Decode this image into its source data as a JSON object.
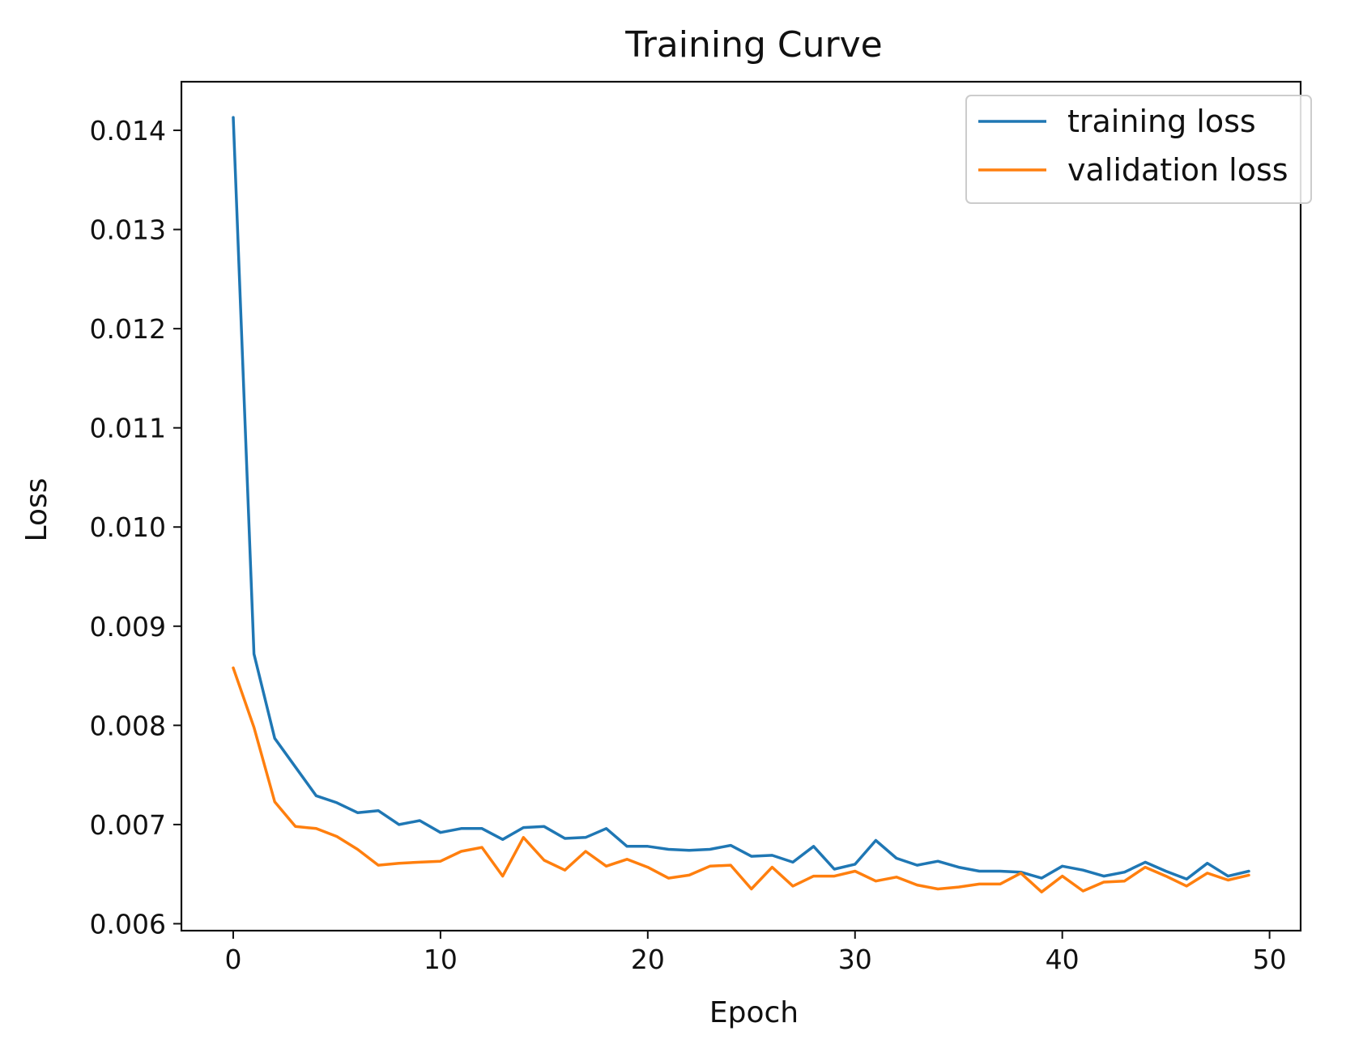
{
  "chart_data": {
    "type": "line",
    "title": "Training Curve",
    "xlabel": "Epoch",
    "ylabel": "Loss",
    "xlim": [
      -2.5,
      51.5
    ],
    "ylim": [
      0.00593,
      0.01449
    ],
    "xticks": [
      0,
      10,
      20,
      30,
      40,
      50
    ],
    "xtick_labels": [
      "0",
      "10",
      "20",
      "30",
      "40",
      "50"
    ],
    "yticks": [
      0.006,
      0.007,
      0.008,
      0.009,
      0.01,
      0.011,
      0.012,
      0.013,
      0.014
    ],
    "ytick_labels": [
      "0.006",
      "0.007",
      "0.008",
      "0.009",
      "0.010",
      "0.011",
      "0.012",
      "0.013",
      "0.014"
    ],
    "grid": false,
    "legend_position": "top-right",
    "x": [
      0,
      1,
      2,
      3,
      4,
      5,
      6,
      7,
      8,
      9,
      10,
      11,
      12,
      13,
      14,
      15,
      16,
      17,
      18,
      19,
      20,
      21,
      22,
      23,
      24,
      25,
      26,
      27,
      28,
      29,
      30,
      31,
      32,
      33,
      34,
      35,
      36,
      37,
      38,
      39,
      40,
      41,
      42,
      43,
      44,
      45,
      46,
      47,
      48,
      49
    ],
    "series": [
      {
        "name": "training loss",
        "color": "#1f77b4",
        "values": [
          0.01413,
          0.00872,
          0.00787,
          0.00758,
          0.00729,
          0.00722,
          0.00712,
          0.00714,
          0.007,
          0.00704,
          0.00692,
          0.00696,
          0.00696,
          0.00685,
          0.00697,
          0.00698,
          0.00686,
          0.00687,
          0.00696,
          0.00678,
          0.00678,
          0.00675,
          0.00674,
          0.00675,
          0.00679,
          0.00668,
          0.00669,
          0.00662,
          0.00678,
          0.00655,
          0.0066,
          0.00684,
          0.00666,
          0.00659,
          0.00663,
          0.00657,
          0.00653,
          0.00653,
          0.00652,
          0.00646,
          0.00658,
          0.00654,
          0.00648,
          0.00652,
          0.00662,
          0.00653,
          0.00645,
          0.00661,
          0.00648,
          0.00653
        ]
      },
      {
        "name": "validation loss",
        "color": "#ff7f0e",
        "values": [
          0.00858,
          0.00798,
          0.00723,
          0.00698,
          0.00696,
          0.00688,
          0.00675,
          0.00659,
          0.00661,
          0.00662,
          0.00663,
          0.00673,
          0.00677,
          0.00648,
          0.00687,
          0.00664,
          0.00654,
          0.00673,
          0.00658,
          0.00665,
          0.00657,
          0.00646,
          0.00649,
          0.00658,
          0.00659,
          0.00635,
          0.00657,
          0.00638,
          0.00648,
          0.00648,
          0.00653,
          0.00643,
          0.00647,
          0.00639,
          0.00635,
          0.00637,
          0.0064,
          0.0064,
          0.00651,
          0.00632,
          0.00648,
          0.00633,
          0.00642,
          0.00643,
          0.00657,
          0.00648,
          0.00638,
          0.00651,
          0.00644,
          0.00649
        ]
      }
    ]
  }
}
